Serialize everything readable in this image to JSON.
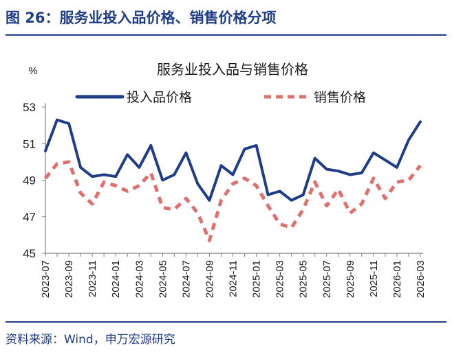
{
  "figure": {
    "title": "图 26：服务业投入品价格、销售价格分项",
    "source": "资料来源：Wind，申万宏源研究",
    "accent_color": "#1f3c88"
  },
  "chart_data": {
    "type": "line",
    "title": "服务业投入品与销售价格",
    "ylabel": "%",
    "xlabel": "",
    "ylim": [
      45,
      53
    ],
    "yticks": [
      45,
      47,
      49,
      51,
      53
    ],
    "grid": false,
    "legend_position": "top",
    "x": [
      "2023-07",
      "2023-08",
      "2023-09",
      "2023-10",
      "2023-11",
      "2023-12",
      "2024-01",
      "2024-02",
      "2024-03",
      "2024-04",
      "2024-05",
      "2024-06",
      "2024-07",
      "2024-08",
      "2024-09",
      "2024-10",
      "2024-11",
      "2024-12",
      "2025-01",
      "2025-02",
      "2025-03",
      "2025-04",
      "2025-05",
      "2025-06",
      "2025-07",
      "2025-08",
      "2025-09",
      "2025-10",
      "2025-11",
      "2025-12",
      "2026-01",
      "2026-02",
      "2026-03"
    ],
    "xtick_labels": [
      "2023-07",
      "2023-09",
      "2023-11",
      "2024-01",
      "2024-03",
      "2024-05",
      "2024-07",
      "2024-09",
      "2024-11",
      "2025-01",
      "2025-03",
      "2025-05",
      "2025-07",
      "2025-09",
      "2025-11",
      "2026-01",
      "2026-03"
    ],
    "series": [
      {
        "name": "投入品价格",
        "color": "#1f3c88",
        "style": "solid",
        "values": [
          50.6,
          52.3,
          52.1,
          49.7,
          49.2,
          49.3,
          49.2,
          50.4,
          49.7,
          50.9,
          49.0,
          49.3,
          50.5,
          48.8,
          47.9,
          49.8,
          49.3,
          50.7,
          50.9,
          48.2,
          48.4,
          47.9,
          48.2,
          50.2,
          49.6,
          49.5,
          49.3,
          49.4,
          50.5,
          50.1,
          49.7,
          51.2,
          52.2
        ]
      },
      {
        "name": "销售价格",
        "color": "#e07070",
        "style": "dashed",
        "values": [
          49.1,
          49.9,
          50.0,
          48.3,
          47.7,
          48.9,
          48.7,
          48.4,
          48.7,
          49.4,
          47.5,
          47.4,
          48.0,
          47.2,
          45.7,
          47.9,
          48.8,
          49.1,
          48.7,
          47.6,
          46.6,
          46.4,
          47.4,
          48.9,
          47.6,
          48.5,
          47.2,
          47.7,
          49.1,
          48.0,
          48.9,
          49.0,
          49.8
        ]
      }
    ]
  }
}
